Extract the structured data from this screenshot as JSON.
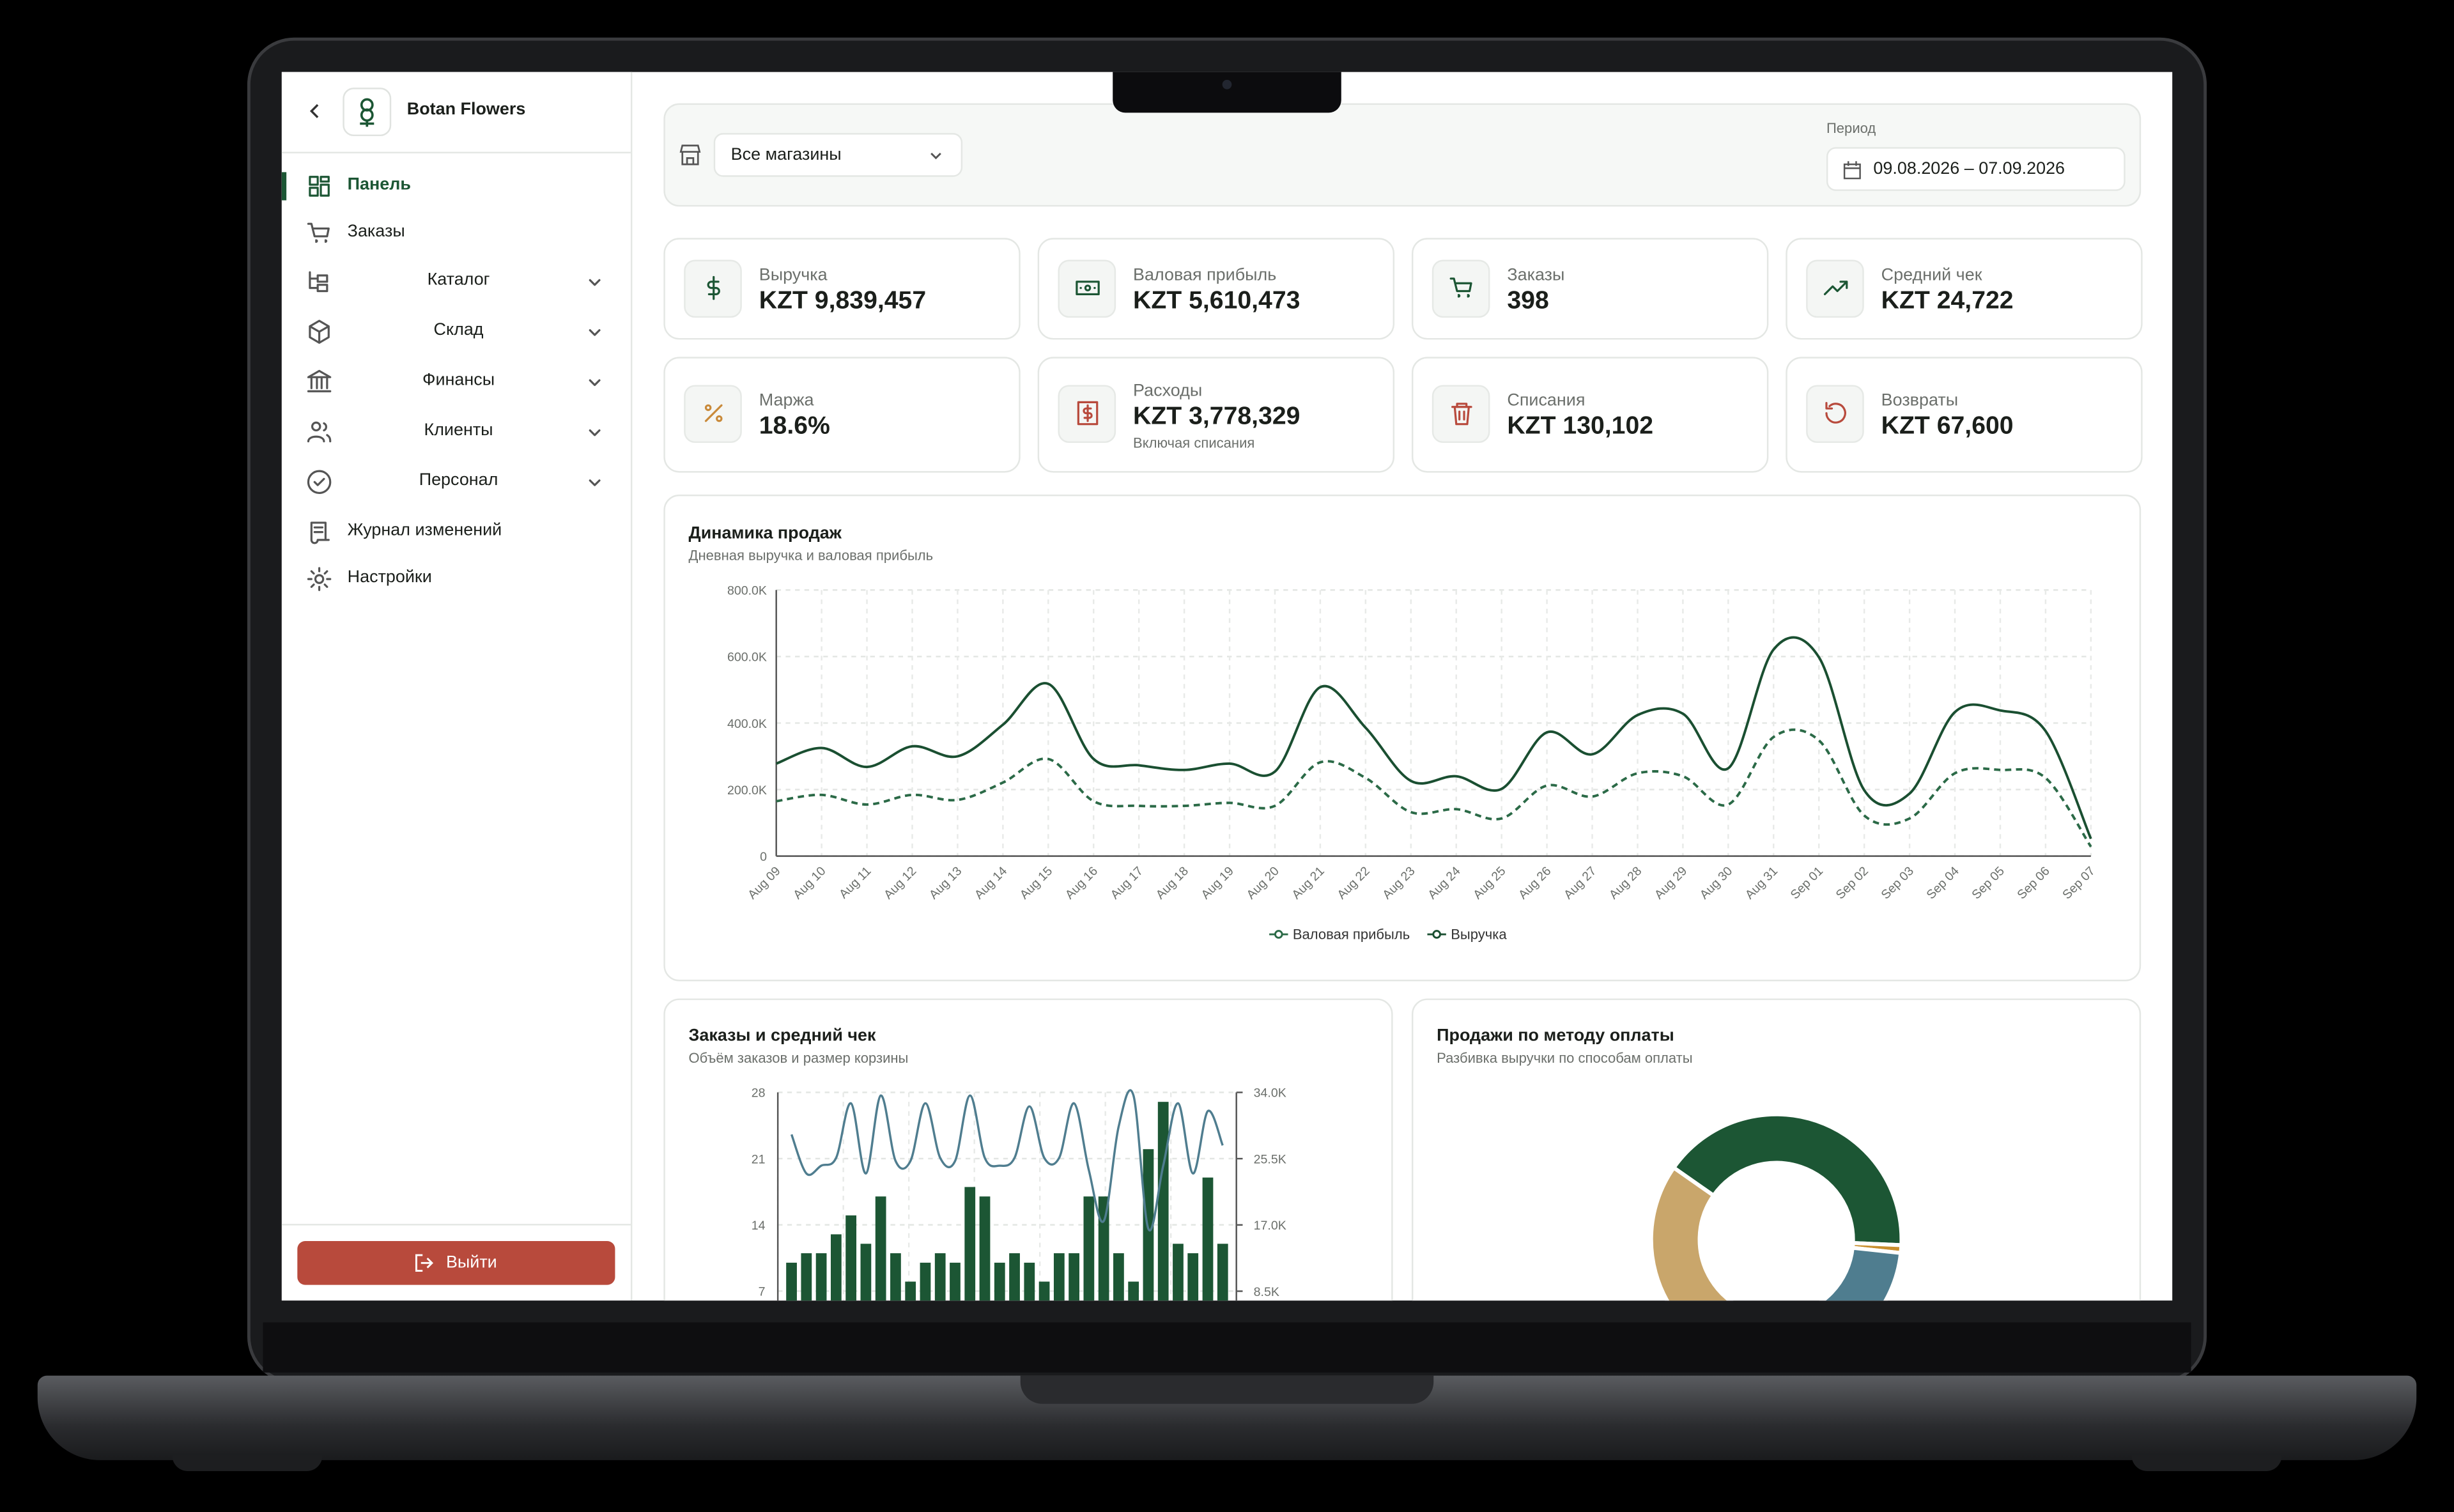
{
  "sidebar": {
    "brand": "Botan Flowers",
    "nav": [
      "Панель",
      "Заказы",
      "Каталог",
      "Склад",
      "Финансы",
      "Клиенты",
      "Персонал",
      "Журнал изменений",
      "Настройки"
    ],
    "logout": "Выйти"
  },
  "filters": {
    "store": "Все магазины",
    "period_label": "Период",
    "period": "09.08.2026 – 07.09.2026"
  },
  "kpis": [
    {
      "label": "Выручка",
      "value": "KZT 9,839,457"
    },
    {
      "label": "Валовая прибыль",
      "value": "KZT 5,610,473"
    },
    {
      "label": "Заказы",
      "value": "398"
    },
    {
      "label": "Средний чек",
      "value": "KZT 24,722"
    },
    {
      "label": "Маржа",
      "value": "18.6%"
    },
    {
      "label": "Расходы",
      "value": "KZT 3,778,329",
      "note": "Включая списания"
    },
    {
      "label": "Списания",
      "value": "KZT 130,102"
    },
    {
      "label": "Возвраты",
      "value": "KZT 67,600"
    }
  ],
  "chart_data": [
    {
      "type": "line",
      "title": "Динамика продаж",
      "subtitle": "Дневная выручка и валовая прибыль",
      "categories": [
        "Aug 09",
        "Aug 10",
        "Aug 11",
        "Aug 12",
        "Aug 13",
        "Aug 14",
        "Aug 15",
        "Aug 16",
        "Aug 17",
        "Aug 18",
        "Aug 19",
        "Aug 20",
        "Aug 21",
        "Aug 22",
        "Aug 23",
        "Aug 24",
        "Aug 25",
        "Aug 26",
        "Aug 27",
        "Aug 28",
        "Aug 29",
        "Aug 30",
        "Aug 31",
        "Sep 01",
        "Sep 02",
        "Sep 03",
        "Sep 04",
        "Sep 05",
        "Sep 06",
        "Sep 07"
      ],
      "series": [
        {
          "name": "Валовая прибыль",
          "color": "#2b6a47",
          "dash": true,
          "values": [
            165000,
            184000,
            155000,
            184000,
            169000,
            221000,
            292000,
            165000,
            151000,
            151000,
            160000,
            151000,
            282000,
            235000,
            132000,
            141000,
            113000,
            212000,
            179000,
            249000,
            240000,
            155000,
            358000,
            348000,
            122000,
            113000,
            249000,
            259000,
            235000,
            28000
          ]
        },
        {
          "name": "Выручка",
          "color": "#1a4f31",
          "dash": false,
          "values": [
            278000,
            325000,
            268000,
            330000,
            300000,
            395000,
            518000,
            292000,
            273000,
            259000,
            278000,
            254000,
            508000,
            386000,
            226000,
            240000,
            202000,
            372000,
            306000,
            424000,
            428000,
            264000,
            621000,
            598000,
            198000,
            188000,
            433000,
            438000,
            376000,
            52000
          ]
        }
      ],
      "ylim": [
        0,
        800000
      ],
      "yticks": [
        0,
        {
          "value": 200000,
          "label": "200.0K"
        },
        {
          "value": 400000,
          "label": "400.0K"
        },
        {
          "value": 600000,
          "label": "600.0K"
        },
        {
          "value": 800000,
          "label": "800.0K"
        }
      ],
      "grid": true
    },
    {
      "type": "bar",
      "title": "Заказы и средний чек",
      "subtitle": "Объём заказов и размер корзины",
      "series": [
        {
          "type": "bar",
          "color": "#1c5634",
          "values": [
            10,
            11,
            11,
            13,
            15,
            12,
            17,
            11,
            8,
            10,
            11,
            10,
            18,
            17,
            10,
            11,
            10,
            8,
            11,
            11,
            17,
            17,
            11,
            8,
            22,
            27,
            12,
            11,
            19,
            12
          ]
        },
        {
          "type": "line",
          "axis": "y2",
          "color": "#4f7d8f",
          "values": [
            28600,
            23600,
            24600,
            25600,
            32600,
            23600,
            33600,
            25200,
            25200,
            32600,
            25600,
            25200,
            33600,
            25600,
            24600,
            25600,
            32200,
            25600,
            25600,
            32600,
            24000,
            17500,
            29600,
            33600,
            16500,
            24600,
            32600,
            23600,
            31600,
            27200
          ]
        }
      ],
      "ylim": [
        6,
        28
      ],
      "yticks": [
        7,
        14,
        21,
        28
      ],
      "y2lim": [
        7300,
        34000
      ],
      "y2ticks": [
        {
          "value": 8500,
          "label": "8.5K"
        },
        {
          "value": 17000,
          "label": "17.0K"
        },
        {
          "value": 25500,
          "label": "25.5K"
        },
        {
          "value": 34000,
          "label": "34.0K"
        }
      ],
      "grid": true
    },
    {
      "type": "pie",
      "title": "Продажи по методу оплаты",
      "subtitle": "Разбивка выручки по способам оплаты",
      "values": [
        41,
        1,
        21,
        37
      ],
      "colors": [
        "#1c5634",
        "#c98f2e",
        "#4f7d8f",
        "#c9a66b"
      ],
      "donut": true
    }
  ]
}
